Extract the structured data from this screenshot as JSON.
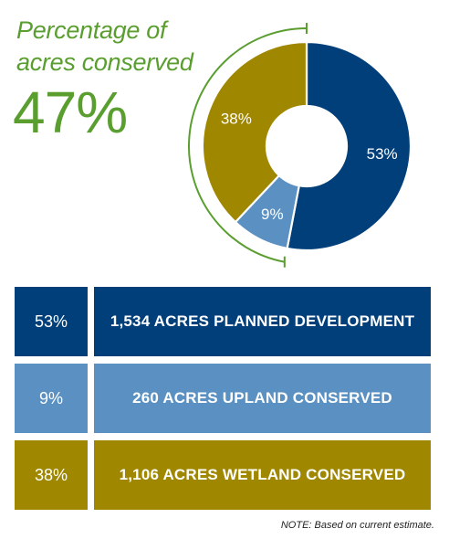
{
  "header": {
    "title_line1": "Percentage of",
    "title_line2": "acres conserved",
    "big_value": "47%"
  },
  "chart_data": {
    "type": "pie",
    "style": "donut",
    "slices": [
      {
        "label": "53%",
        "value": 53,
        "color": "#003f7a"
      },
      {
        "label": "9%",
        "value": 9,
        "color": "#5a91c2"
      },
      {
        "label": "38%",
        "value": 38,
        "color": "#a08700"
      }
    ],
    "bracket_color": "#5a9e2f",
    "bracket_covers_percent": 47
  },
  "table": {
    "rows": [
      {
        "pct": "53%",
        "label": "1,534 ACRES PLANNED DEVELOPMENT",
        "color": "#003f7a"
      },
      {
        "pct": "9%",
        "label": "260 ACRES UPLAND CONSERVED",
        "color": "#5a91c2"
      },
      {
        "pct": "38%",
        "label": "1,106 ACRES WETLAND CONSERVED",
        "color": "#a08700"
      }
    ]
  },
  "note": "NOTE: Based on current estimate."
}
